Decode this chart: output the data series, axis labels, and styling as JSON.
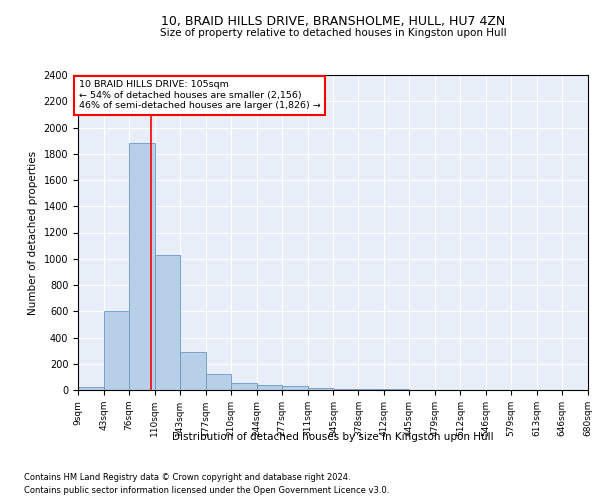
{
  "title1": "10, BRAID HILLS DRIVE, BRANSHOLME, HULL, HU7 4ZN",
  "title2": "Size of property relative to detached houses in Kingston upon Hull",
  "xlabel": "Distribution of detached houses by size in Kingston upon Hull",
  "ylabel": "Number of detached properties",
  "footnote1": "Contains HM Land Registry data © Crown copyright and database right 2024.",
  "footnote2": "Contains public sector information licensed under the Open Government Licence v3.0.",
  "annotation_line1": "10 BRAID HILLS DRIVE: 105sqm",
  "annotation_line2": "← 54% of detached houses are smaller (2,156)",
  "annotation_line3": "46% of semi-detached houses are larger (1,826) →",
  "property_size_sqm": 105,
  "bar_color": "#b8cfe8",
  "bar_edge_color": "#6699cc",
  "vline_color": "red",
  "background_color": "#e8eef8",
  "bin_edges": [
    9,
    43,
    76,
    110,
    143,
    177,
    210,
    244,
    277,
    311,
    345,
    378,
    412,
    445,
    479,
    512,
    546,
    579,
    613,
    646,
    680
  ],
  "bin_labels": [
    "9sqm",
    "43sqm",
    "76sqm",
    "110sqm",
    "143sqm",
    "177sqm",
    "210sqm",
    "244sqm",
    "277sqm",
    "311sqm",
    "345sqm",
    "378sqm",
    "412sqm",
    "445sqm",
    "479sqm",
    "512sqm",
    "546sqm",
    "579sqm",
    "613sqm",
    "646sqm",
    "680sqm"
  ],
  "counts": [
    20,
    600,
    1880,
    1030,
    290,
    120,
    50,
    40,
    30,
    15,
    5,
    5,
    5,
    0,
    0,
    0,
    0,
    0,
    0,
    0
  ],
  "ylim": [
    0,
    2400
  ],
  "yticks": [
    0,
    200,
    400,
    600,
    800,
    1000,
    1200,
    1400,
    1600,
    1800,
    2000,
    2200,
    2400
  ]
}
